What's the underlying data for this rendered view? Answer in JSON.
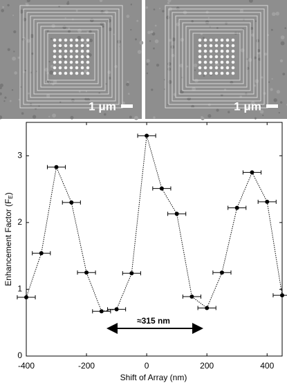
{
  "images": [
    {
      "scale_label": "1 μm"
    },
    {
      "scale_label": "1 μm"
    }
  ],
  "chart_data": {
    "type": "line",
    "xlabel": "Shift of Array (nm)",
    "ylabel": [
      "Enhancement Factor (F",
      "E",
      ")"
    ],
    "annotation": "≈315 nm",
    "x": [
      -400,
      -350,
      -300,
      -250,
      -200,
      -150,
      -100,
      -50,
      0,
      50,
      100,
      150,
      200,
      250,
      300,
      350,
      400,
      450
    ],
    "values": [
      0.88,
      1.54,
      2.83,
      2.3,
      1.25,
      0.67,
      0.7,
      1.24,
      3.3,
      2.51,
      2.13,
      0.89,
      0.72,
      1.25,
      2.22,
      2.75,
      2.31,
      0.91
    ],
    "xerr": [
      30,
      30,
      30,
      30,
      30,
      30,
      30,
      30,
      30,
      30,
      30,
      30,
      30,
      30,
      30,
      30,
      30,
      30
    ],
    "color": "#000000",
    "xlim": [
      -400,
      450
    ],
    "ylim": [
      0,
      3.5
    ],
    "xticks": [
      -400,
      -200,
      0,
      200,
      400
    ],
    "yticks": [
      0,
      1,
      2,
      3
    ],
    "grid": false
  }
}
